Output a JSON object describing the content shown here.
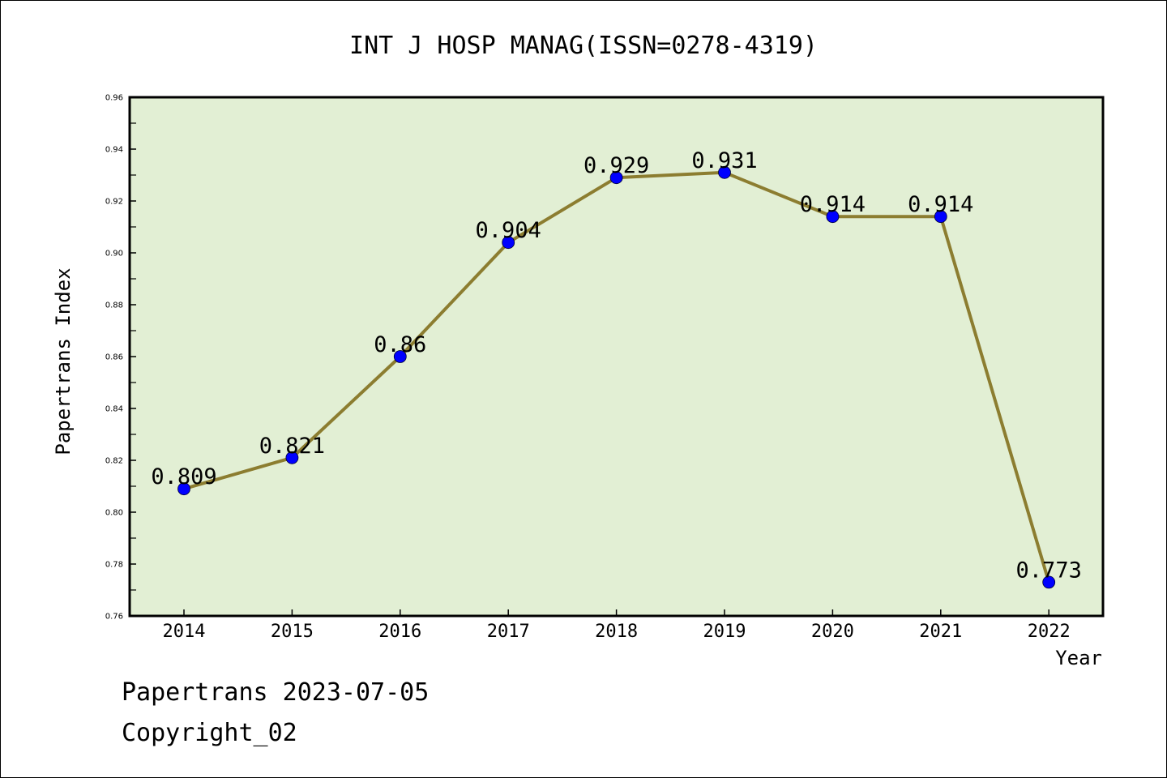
{
  "chart_data": {
    "type": "line",
    "title": "INT J HOSP MANAG(ISSN=0278-4319)",
    "xlabel": "Year",
    "ylabel": "Papertrans Index",
    "categories": [
      "2014",
      "2015",
      "2016",
      "2017",
      "2018",
      "2019",
      "2020",
      "2021",
      "2022"
    ],
    "values": [
      0.809,
      0.821,
      0.86,
      0.904,
      0.929,
      0.931,
      0.914,
      0.914,
      0.773
    ],
    "data_labels": [
      "0.809",
      "0.821",
      "0.86",
      "0.904",
      "0.929",
      "0.931",
      "0.914",
      "0.914",
      "0.773"
    ],
    "ylim": [
      0.76,
      0.96
    ],
    "yticks": [
      "0.76",
      "0.78",
      "0.80",
      "0.82",
      "0.84",
      "0.86",
      "0.88",
      "0.90",
      "0.92",
      "0.94",
      "0.96"
    ],
    "grid": false,
    "legend": "none",
    "colors": {
      "plot_background": "#e2efd4",
      "line": "#8c7d30",
      "marker": "#0000ff"
    }
  },
  "footer": {
    "source": "Papertrans 2023-07-05",
    "copyright": "Copyright_02"
  }
}
